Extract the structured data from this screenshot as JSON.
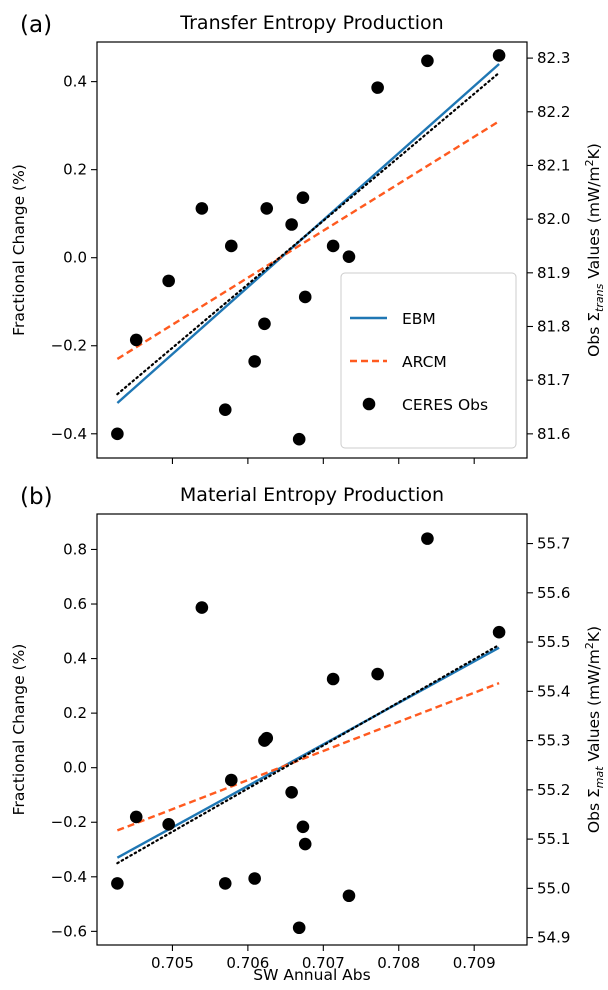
{
  "chart_data": [
    {
      "type": "scatter",
      "panel_label": "(a)",
      "title": "Transfer Entropy Production",
      "xlabel": "",
      "ylabel_left": "Fractional Change (%)",
      "ylabel_right": "Obs Σ_trans Values (mW/m²K)",
      "ylabel_right_parts": {
        "pre": "Obs ",
        "sym": "Σ",
        "sub": "trans",
        "post": " Values (mW/m",
        "sup": "2",
        "tail": "K)"
      },
      "xlim": [
        0.704,
        0.7097
      ],
      "ylim_left": [
        -0.455,
        0.49
      ],
      "ylim_right": [
        81.555,
        82.33
      ],
      "xticks": [
        0.705,
        0.706,
        0.707,
        0.708,
        0.709
      ],
      "xtick_labels_visible": false,
      "yticks_left": [
        -0.4,
        -0.2,
        0.0,
        0.2,
        0.4
      ],
      "ytick_labels_left": [
        "−0.4",
        "−0.2",
        "0.0",
        "0.2",
        "0.4"
      ],
      "yticks_right": [
        81.6,
        81.7,
        81.8,
        81.9,
        82.0,
        82.1,
        82.2,
        82.3
      ],
      "ytick_labels_right": [
        "81.6",
        "81.7",
        "81.8",
        "81.9",
        "82.0",
        "82.1",
        "82.2",
        "82.3"
      ],
      "legend": {
        "placement": "lower-right",
        "entries": [
          "EBM",
          "ARCM",
          "CERES Obs"
        ]
      },
      "series": [
        {
          "name": "EBM",
          "kind": "line",
          "style": "solid",
          "color": "#1f77b4",
          "x": [
            0.70427,
            0.70933
          ],
          "y": [
            -0.33,
            0.44
          ]
        },
        {
          "name": "ARCM",
          "kind": "line",
          "style": "dashed",
          "color": "#ff5a1f",
          "x": [
            0.70427,
            0.70933
          ],
          "y": [
            -0.23,
            0.31
          ]
        },
        {
          "name": "",
          "kind": "line",
          "style": "dotted",
          "color": "#000000",
          "x": [
            0.70427,
            0.70933
          ],
          "y": [
            -0.31,
            0.42
          ]
        },
        {
          "name": "CERES Obs",
          "kind": "scatter",
          "color": "#000000",
          "x": [
            0.70427,
            0.70452,
            0.70495,
            0.70539,
            0.7057,
            0.70578,
            0.70609,
            0.70622,
            0.70625,
            0.70658,
            0.70668,
            0.70673,
            0.70676,
            0.70713,
            0.70734,
            0.70772,
            0.70838,
            0.70933
          ],
          "y": [
            81.6,
            81.775,
            81.885,
            82.02,
            81.645,
            81.95,
            81.735,
            81.805,
            82.02,
            81.99,
            81.59,
            82.04,
            81.855,
            81.95,
            81.93,
            82.245,
            82.295,
            82.305
          ]
        }
      ]
    },
    {
      "type": "scatter",
      "panel_label": "(b)",
      "title": "Material Entropy Production",
      "xlabel": "SW Annual Abs",
      "ylabel_left": "Fractional Change (%)",
      "ylabel_right": "Obs Σ_mat Values (mW/m²K)",
      "ylabel_right_parts": {
        "pre": "Obs ",
        "sym": "Σ",
        "sub": "mat",
        "post": " Values (mW/m",
        "sup": "2",
        "tail": "K)"
      },
      "xlim": [
        0.704,
        0.7097
      ],
      "ylim_left": [
        -0.65,
        0.93
      ],
      "ylim_right": [
        54.885,
        55.76
      ],
      "xticks": [
        0.705,
        0.706,
        0.707,
        0.708,
        0.709
      ],
      "xtick_labels": [
        "0.705",
        "0.706",
        "0.707",
        "0.708",
        "0.709"
      ],
      "yticks_left": [
        -0.6,
        -0.4,
        -0.2,
        0.0,
        0.2,
        0.4,
        0.6,
        0.8
      ],
      "ytick_labels_left": [
        "−0.6",
        "−0.4",
        "−0.2",
        "0.0",
        "0.2",
        "0.4",
        "0.6",
        "0.8"
      ],
      "yticks_right": [
        54.9,
        55.0,
        55.1,
        55.2,
        55.3,
        55.4,
        55.5,
        55.6,
        55.7
      ],
      "ytick_labels_right": [
        "54.9",
        "55.0",
        "55.1",
        "55.2",
        "55.3",
        "55.4",
        "55.5",
        "55.6",
        "55.7"
      ],
      "series": [
        {
          "name": "EBM",
          "kind": "line",
          "style": "solid",
          "color": "#1f77b4",
          "x": [
            0.70427,
            0.70933
          ],
          "y": [
            -0.33,
            0.44
          ]
        },
        {
          "name": "ARCM",
          "kind": "line",
          "style": "dashed",
          "color": "#ff5a1f",
          "x": [
            0.70427,
            0.70933
          ],
          "y": [
            -0.23,
            0.31
          ]
        },
        {
          "name": "",
          "kind": "line",
          "style": "dotted",
          "color": "#000000",
          "x": [
            0.70427,
            0.70933
          ],
          "y": [
            -0.35,
            0.45
          ]
        },
        {
          "name": "CERES Obs",
          "kind": "scatter",
          "color": "#000000",
          "x": [
            0.70427,
            0.70452,
            0.70495,
            0.70539,
            0.7057,
            0.70578,
            0.70609,
            0.70622,
            0.70625,
            0.70658,
            0.70668,
            0.70673,
            0.70676,
            0.70713,
            0.70734,
            0.70772,
            0.70838,
            0.70933
          ],
          "y": [
            55.01,
            55.145,
            55.13,
            55.57,
            55.01,
            55.22,
            55.02,
            55.3,
            55.305,
            55.195,
            54.92,
            55.125,
            55.09,
            55.425,
            54.985,
            55.435,
            55.71,
            55.52
          ]
        }
      ]
    }
  ]
}
